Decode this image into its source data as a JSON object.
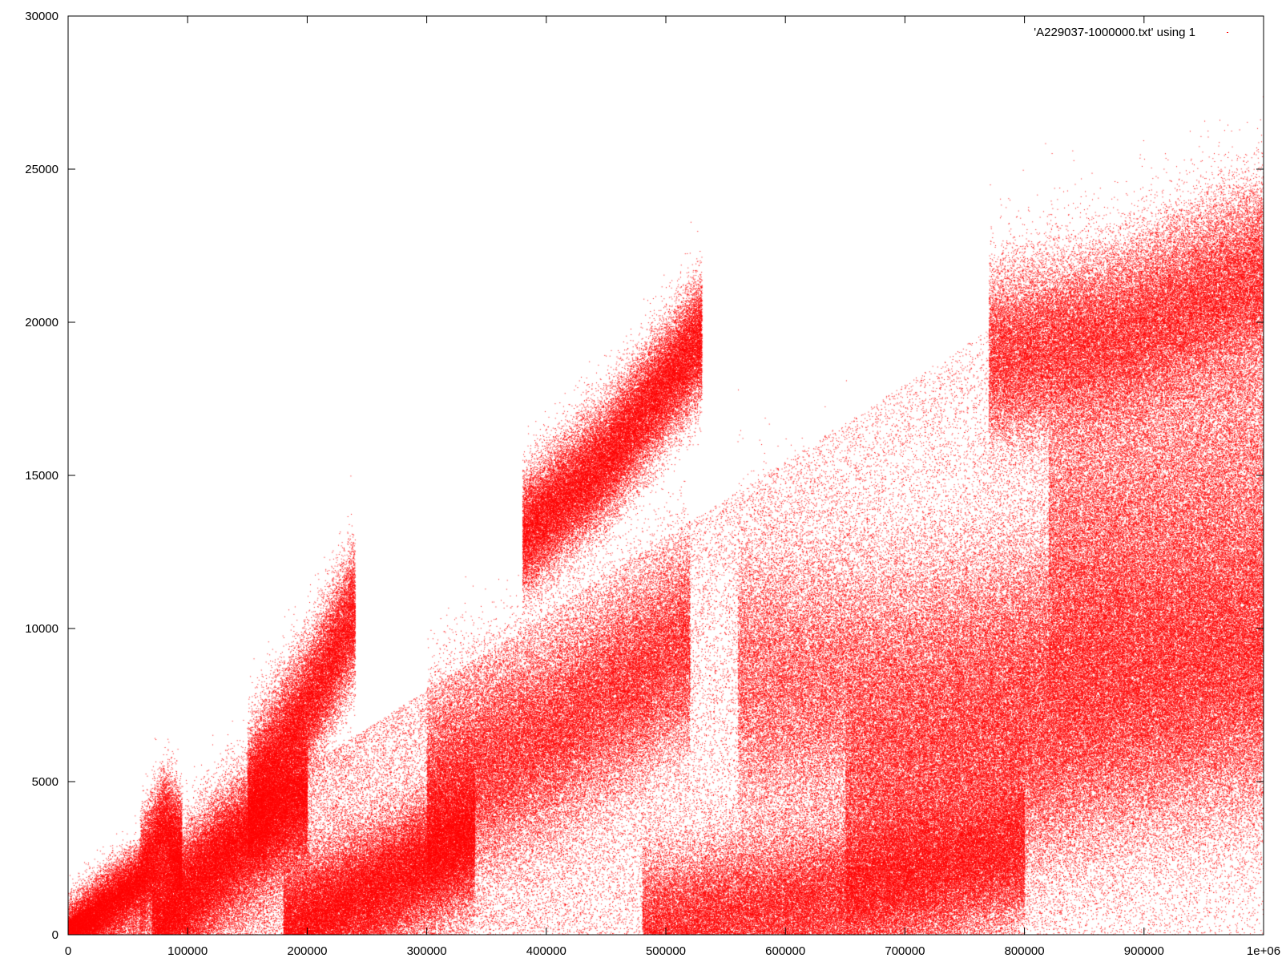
{
  "chart_data": {
    "type": "scatter",
    "title": "",
    "xlabel": "",
    "ylabel": "",
    "xlim": [
      0,
      1000000
    ],
    "ylim": [
      0,
      30000
    ],
    "grid": false,
    "legend_position": "top-right",
    "x_ticks": [
      0,
      100000,
      200000,
      300000,
      400000,
      500000,
      600000,
      700000,
      800000,
      900000,
      1000000
    ],
    "x_tick_labels": [
      "0",
      "100000",
      "200000",
      "300000",
      "400000",
      "500000",
      "600000",
      "700000",
      "800000",
      "900000",
      "1e+06"
    ],
    "y_ticks": [
      0,
      5000,
      10000,
      15000,
      20000,
      25000,
      30000
    ],
    "y_tick_labels": [
      "0",
      "5000",
      "10000",
      "15000",
      "20000",
      "25000",
      "30000"
    ],
    "series": [
      {
        "name": "'A229037-1000000.txt' using 1",
        "color": "#ff0000",
        "marker": "dot",
        "n_points": 1000000,
        "density_regions": [
          {
            "x": [
              0,
              60000
            ],
            "y": [
              0,
              2000
            ],
            "density": "high"
          },
          {
            "x": [
              60000,
              100000
            ],
            "y": [
              0,
              4500
            ],
            "density": "high"
          },
          {
            "x": [
              100000,
              200000
            ],
            "y": [
              0,
              5000
            ],
            "density": "high"
          },
          {
            "x": [
              160000,
              240000
            ],
            "y": [
              5000,
              11000
            ],
            "density": "high"
          },
          {
            "x": [
              190000,
              330000
            ],
            "y": [
              0,
              4000
            ],
            "density": "high"
          },
          {
            "x": [
              300000,
              480000
            ],
            "y": [
              3000,
              9000
            ],
            "density": "medium"
          },
          {
            "x": [
              380000,
              530000
            ],
            "y": [
              12500,
              20500
            ],
            "density": "high"
          },
          {
            "x": [
              500000,
              800000
            ],
            "y": [
              0,
              4000
            ],
            "density": "high"
          },
          {
            "x": [
              600000,
              1000000
            ],
            "y": [
              4000,
              12000
            ],
            "density": "medium"
          },
          {
            "x": [
              750000,
              1000000
            ],
            "y": [
              17000,
              24000
            ],
            "density": "high"
          }
        ]
      }
    ]
  }
}
